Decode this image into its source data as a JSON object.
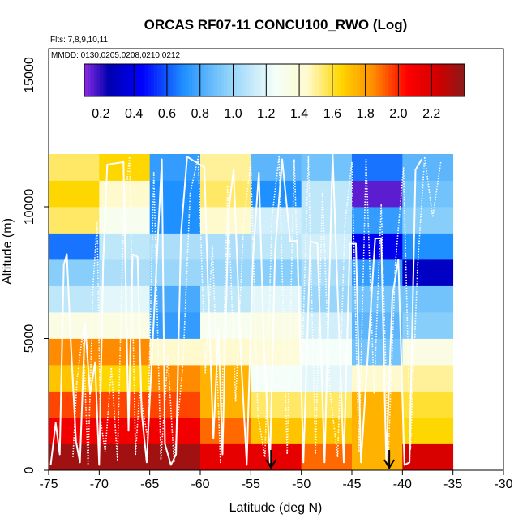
{
  "chart_data": {
    "type": "heatmap",
    "title": "ORCAS RF07-11 CONCU100_RWO (Log)",
    "subtitle_flights": "Flts: 7,8,9,10,11",
    "subtitle_dates": "MMDD: 0130,0205,0208,0210,0212",
    "xlabel": "Latitude (deg N)",
    "ylabel": "Altitude (m)",
    "xlim": [
      -75,
      -30
    ],
    "ylim": [
      0,
      16000
    ],
    "x_ticks": [
      -75,
      -70,
      -65,
      -60,
      -55,
      -50,
      -45,
      -40,
      -35,
      -30
    ],
    "x_tick_labels": [
      "-75",
      "-70",
      "-65",
      "-60",
      "-55",
      "-50",
      "-45",
      "-40",
      "-35",
      "-30"
    ],
    "y_ticks": [
      0,
      5000,
      10000,
      15000
    ],
    "y_tick_labels": [
      "0",
      "5000",
      "10000",
      "15000"
    ],
    "colorbar": {
      "range": [
        0.1,
        2.4
      ],
      "ticks": [
        0.2,
        0.4,
        0.6,
        0.8,
        1.0,
        1.2,
        1.4,
        1.6,
        1.8,
        2.0,
        2.2
      ],
      "tick_labels": [
        "0.2",
        "0.4",
        "0.6",
        "0.8",
        "1.0",
        "1.2",
        "1.4",
        "1.6",
        "1.8",
        "2.0",
        "2.2"
      ],
      "stops": [
        {
          "v": 0.1,
          "color": "#8a2be2"
        },
        {
          "v": 0.25,
          "color": "#0000b0"
        },
        {
          "v": 0.45,
          "color": "#0000ff"
        },
        {
          "v": 0.7,
          "color": "#1e90ff"
        },
        {
          "v": 0.95,
          "color": "#87cefa"
        },
        {
          "v": 1.25,
          "color": "#f5fffa"
        },
        {
          "v": 1.45,
          "color": "#fffacd"
        },
        {
          "v": 1.65,
          "color": "#ffd700"
        },
        {
          "v": 1.85,
          "color": "#ff8c00"
        },
        {
          "v": 2.05,
          "color": "#ff0000"
        },
        {
          "v": 2.25,
          "color": "#cd0000"
        },
        {
          "v": 2.4,
          "color": "#8b1a1a"
        }
      ]
    },
    "lat_bins": [
      -75,
      -70,
      -65,
      -60,
      -55,
      -50,
      -45,
      -40,
      -35
    ],
    "alt_bins": [
      0,
      1000,
      2000,
      3000,
      4000,
      5000,
      6000,
      7000,
      8000,
      9000,
      10000,
      11000,
      12000
    ],
    "grid_values": [
      [
        2.35,
        2.35,
        2.35,
        2.15,
        2.15,
        1.9,
        1.75,
        2.2
      ],
      [
        2.1,
        2.1,
        2.1,
        1.9,
        1.7,
        1.7,
        1.75,
        1.65
      ],
      [
        1.95,
        1.95,
        1.95,
        1.75,
        1.55,
        1.55,
        1.75,
        1.6
      ],
      [
        1.7,
        1.65,
        1.85,
        1.75,
        1.25,
        1.2,
        1.45,
        1.5
      ],
      [
        1.85,
        1.85,
        1.45,
        1.45,
        1.4,
        1.25,
        0.9,
        1.35
      ],
      [
        1.35,
        1.35,
        0.75,
        1.3,
        1.35,
        1.15,
        0.85,
        0.95
      ],
      [
        1.1,
        1.2,
        0.8,
        1.1,
        1.2,
        1.0,
        0.9,
        0.9
      ],
      [
        0.95,
        1.05,
        1.0,
        1.0,
        0.95,
        1.05,
        0.75,
        0.3
      ],
      [
        0.65,
        1.1,
        1.05,
        1.05,
        1.1,
        1.15,
        0.4,
        0.7
      ],
      [
        1.55,
        1.3,
        0.7,
        1.45,
        1.15,
        1.1,
        0.75,
        0.95
      ],
      [
        1.65,
        1.45,
        0.7,
        1.55,
        0.7,
        1.1,
        0.15,
        0.9
      ],
      [
        1.55,
        1.65,
        0.75,
        1.5,
        0.85,
        0.9,
        0.65,
        0.85
      ],
      [
        1.45,
        1.5,
        1.5,
        1.55,
        1.45,
        1.05,
        0.8,
        1.1
      ]
    ],
    "arrow_latitudes": [
      -53,
      -41.3
    ],
    "flight_tracks": [
      [
        [
          -74.8,
          200
        ],
        [
          -74.3,
          1800
        ],
        [
          -73.9,
          600
        ],
        [
          -73.5,
          7800
        ],
        [
          -73.2,
          8200
        ],
        [
          -72.8,
          4800
        ],
        [
          -72.3,
          1100
        ],
        [
          -71.9,
          300
        ],
        [
          -71.4,
          5600
        ],
        [
          -70.9,
          2900
        ],
        [
          -70.4,
          4100
        ],
        [
          -70.0,
          200
        ],
        [
          -69.6,
          7900
        ],
        [
          -69.2,
          11600
        ],
        [
          -67.6,
          11700
        ],
        [
          -67.1,
          1500
        ],
        [
          -66.7,
          8200
        ],
        [
          -66.2,
          8100
        ],
        [
          -65.8,
          2200
        ],
        [
          -65.3,
          300
        ],
        [
          -63.8,
          11800
        ],
        [
          -63.5,
          1000
        ],
        [
          -62.9,
          200
        ],
        [
          -62.4,
          600
        ],
        [
          -61.9,
          9000
        ],
        [
          -61.3,
          11900
        ],
        [
          -59.6,
          11500
        ],
        [
          -59.2,
          6500
        ],
        [
          -58.7,
          1200
        ],
        [
          -58.2,
          5400
        ],
        [
          -57.8,
          600
        ],
        [
          -57.2,
          9800
        ],
        [
          -56.7,
          11400
        ],
        [
          -56.0,
          4500
        ],
        [
          -55.4,
          200
        ],
        [
          -54.8,
          8000
        ],
        [
          -54.2,
          11300
        ],
        [
          -53.7,
          4700
        ],
        [
          -53.1,
          300
        ],
        [
          -52.6,
          8300
        ],
        [
          -51.9,
          11800
        ],
        [
          -51.1,
          8700
        ],
        [
          -50.4,
          8700
        ],
        [
          -49.8,
          300
        ],
        [
          -49.1,
          8700
        ],
        [
          -48.4,
          8600
        ],
        [
          -47.7,
          300
        ],
        [
          -46.9,
          12000
        ],
        [
          -45.8,
          300
        ],
        [
          -45.2,
          8600
        ],
        [
          -44.6,
          8600
        ],
        [
          -44.1,
          300
        ],
        [
          -43.3,
          5100
        ],
        [
          -42.7,
          8800
        ],
        [
          -42.1,
          8800
        ],
        [
          -41.6,
          300
        ],
        [
          -41.0,
          6600
        ],
        [
          -40.4,
          8000
        ],
        [
          -39.8,
          200
        ],
        [
          -39.3,
          300
        ],
        [
          -38.7,
          11400
        ],
        [
          -38.1,
          11800
        ]
      ],
      [
        [
          -72.6,
          500
        ],
        [
          -72.2,
          3400
        ],
        [
          -71.6,
          5300
        ],
        [
          -71.1,
          200
        ],
        [
          -70.6,
          7100
        ],
        [
          -70.2,
          9400
        ],
        [
          -69.9,
          2000
        ],
        [
          -69.4,
          700
        ],
        [
          -68.8,
          3900
        ],
        [
          -68.2,
          400
        ],
        [
          -67.6,
          9600
        ],
        [
          -67.0,
          11900
        ],
        [
          -66.4,
          600
        ],
        [
          -66.0,
          3000
        ],
        [
          -65.2,
          1200
        ],
        [
          -64.6,
          11300
        ],
        [
          -63.9,
          400
        ],
        [
          -63.2,
          4300
        ],
        [
          -62.6,
          300
        ],
        [
          -61.7,
          4100
        ],
        [
          -61.0,
          10500
        ],
        [
          -60.2,
          11900
        ],
        [
          -59.5,
          3700
        ],
        [
          -58.8,
          8500
        ],
        [
          -58.0,
          300
        ],
        [
          -57.3,
          10800
        ],
        [
          -56.5,
          2600
        ],
        [
          -55.7,
          9400
        ],
        [
          -55.0,
          11700
        ],
        [
          -54.3,
          2100
        ],
        [
          -53.6,
          500
        ],
        [
          -52.9,
          9600
        ],
        [
          -52.2,
          11900
        ],
        [
          -51.4,
          600
        ],
        [
          -50.7,
          11800
        ],
        [
          -50.0,
          3200
        ],
        [
          -49.3,
          11900
        ],
        [
          -48.6,
          600
        ],
        [
          -47.9,
          10600
        ],
        [
          -47.2,
          3100
        ],
        [
          -46.4,
          500
        ],
        [
          -45.7,
          9300
        ],
        [
          -45.0,
          11700
        ],
        [
          -44.3,
          700
        ],
        [
          -43.6,
          11800
        ],
        [
          -42.8,
          2900
        ],
        [
          -42.1,
          10100
        ],
        [
          -41.4,
          500
        ],
        [
          -40.7,
          7800
        ],
        [
          -39.9,
          11500
        ],
        [
          -39.2,
          800
        ],
        [
          -38.5,
          7700
        ],
        [
          -37.8,
          11900
        ],
        [
          -37.0,
          9600
        ],
        [
          -36.2,
          11700
        ]
      ]
    ]
  }
}
